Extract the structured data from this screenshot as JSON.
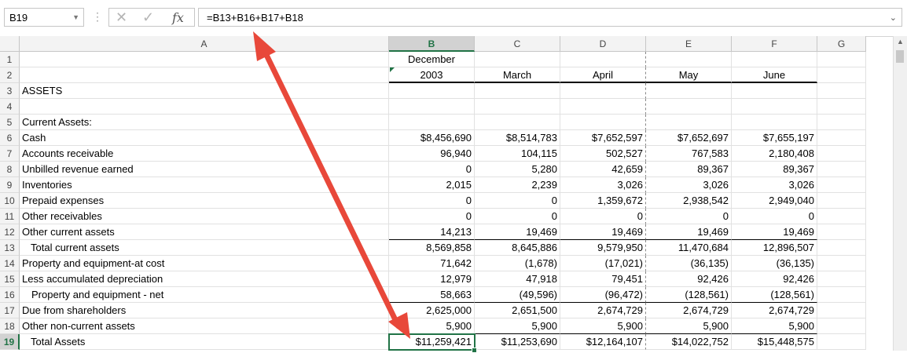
{
  "formula_bar": {
    "name_box": "B19",
    "cancel_glyph": "✕",
    "enter_glyph": "✓",
    "fx_label": "fx",
    "formula": "=B13+B16+B17+B18"
  },
  "columns": [
    "A",
    "B",
    "C",
    "D",
    "E",
    "F",
    "G"
  ],
  "rows": [
    {
      "n": "1",
      "a": "",
      "b": "December",
      "c": "",
      "d": "",
      "e": "",
      "f": ""
    },
    {
      "n": "2",
      "a": "",
      "b": "2003",
      "c": "March",
      "d": "April",
      "e": "May",
      "f": "June"
    },
    {
      "n": "3",
      "a": "ASSETS",
      "b": "",
      "c": "",
      "d": "",
      "e": "",
      "f": ""
    },
    {
      "n": "4",
      "a": "",
      "b": "",
      "c": "",
      "d": "",
      "e": "",
      "f": ""
    },
    {
      "n": "5",
      "a": "Current Assets:",
      "b": "",
      "c": "",
      "d": "",
      "e": "",
      "f": ""
    },
    {
      "n": "6",
      "a": "Cash",
      "b": "$8,456,690",
      "c": "$8,514,783",
      "d": "$7,652,597",
      "e": "$7,652,697",
      "f": "$7,655,197"
    },
    {
      "n": "7",
      "a": "Accounts receivable",
      "b": "96,940",
      "c": "104,115",
      "d": "502,527",
      "e": "767,583",
      "f": "2,180,408"
    },
    {
      "n": "8",
      "a": "Unbilled revenue earned",
      "b": "0",
      "c": "5,280",
      "d": "42,659",
      "e": "89,367",
      "f": "89,367"
    },
    {
      "n": "9",
      "a": "Inventories",
      "b": "2,015",
      "c": "2,239",
      "d": "3,026",
      "e": "3,026",
      "f": "3,026"
    },
    {
      "n": "10",
      "a": "Prepaid expenses",
      "b": "0",
      "c": "0",
      "d": "1,359,672",
      "e": "2,938,542",
      "f": "2,949,040"
    },
    {
      "n": "11",
      "a": "Other receivables",
      "b": "0",
      "c": "0",
      "d": "0",
      "e": "0",
      "f": "0"
    },
    {
      "n": "12",
      "a": "Other current assets",
      "b": "14,213",
      "c": "19,469",
      "d": "19,469",
      "e": "19,469",
      "f": "19,469"
    },
    {
      "n": "13",
      "a": "Total current assets",
      "b": "8,569,858",
      "c": "8,645,886",
      "d": "9,579,950",
      "e": "11,470,684",
      "f": "12,896,507"
    },
    {
      "n": "14",
      "a": "Property and equipment-at cost",
      "b": "71,642",
      "c": "(1,678)",
      "d": "(17,021)",
      "e": "(36,135)",
      "f": "(36,135)"
    },
    {
      "n": "15",
      "a": "Less accumulated depreciation",
      "b": "12,979",
      "c": "47,918",
      "d": "79,451",
      "e": "92,426",
      "f": "92,426"
    },
    {
      "n": "16",
      "a": "Property and equipment - net",
      "b": "58,663",
      "c": "(49,596)",
      "d": "(96,472)",
      "e": "(128,561)",
      "f": "(128,561)"
    },
    {
      "n": "17",
      "a": "Due from shareholders",
      "b": "2,625,000",
      "c": "2,651,500",
      "d": "2,674,729",
      "e": "2,674,729",
      "f": "2,674,729"
    },
    {
      "n": "18",
      "a": "Other non-current assets",
      "b": "5,900",
      "c": "5,900",
      "d": "5,900",
      "e": "5,900",
      "f": "5,900"
    },
    {
      "n": "19",
      "a": "Total Assets",
      "b": "$11,259,421",
      "c": "$11,253,690",
      "d": "$12,164,107",
      "e": "$14,022,752",
      "f": "$15,448,575"
    }
  ],
  "colors": {
    "selection": "#217346",
    "arrow": "#e8483a"
  },
  "selected_cell": "B19"
}
